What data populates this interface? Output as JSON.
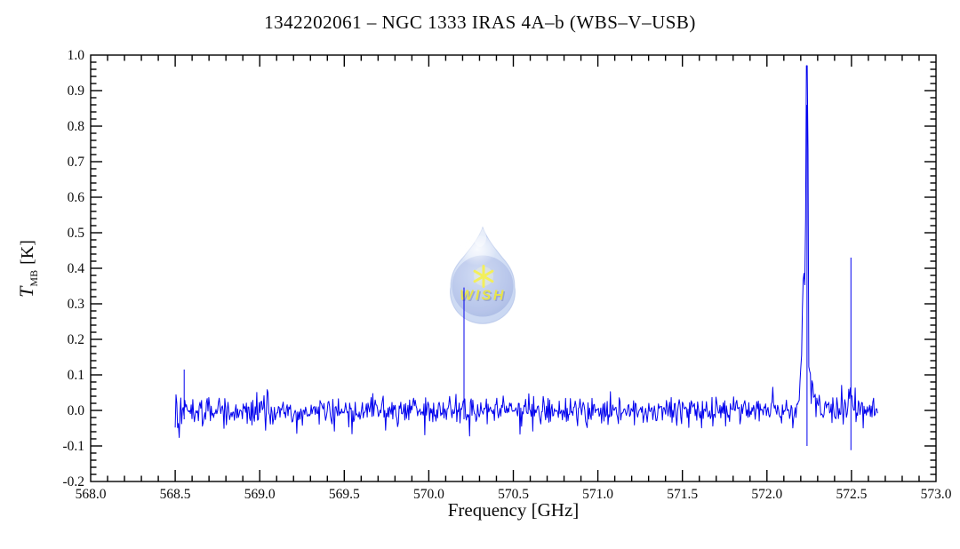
{
  "figure": {
    "background_color": "#ffffff",
    "title": "1342202061 – NGC 1333 IRAS 4A–b (WBS–V–USB)"
  },
  "chart_data": {
    "type": "line",
    "subtype": "spectrum",
    "title": "1342202061 – NGC 1333 IRAS 4A–b (WBS–V–USB)",
    "xlabel": "Frequency [GHz]",
    "ylabel": {
      "symbol": "T",
      "subscript": "MB",
      "unit": "[K]"
    },
    "xlim": [
      568.0,
      573.0
    ],
    "ylim": [
      -0.2,
      1.0
    ],
    "grid": false,
    "legend": "none",
    "x_major_ticks": [
      568.0,
      568.5,
      569.0,
      569.5,
      570.0,
      570.5,
      571.0,
      571.5,
      572.0,
      572.5,
      573.0
    ],
    "x_tick_labels": [
      "568.0",
      "568.5",
      "569.0",
      "569.5",
      "570.0",
      "570.5",
      "571.0",
      "571.5",
      "572.0",
      "572.5",
      "573.0"
    ],
    "x_minor_step": 0.1,
    "y_major_ticks": [
      1.0,
      0.9,
      0.8,
      0.7,
      0.6,
      0.5,
      0.4,
      0.3,
      0.2,
      0.1,
      0.0,
      -0.1,
      -0.2
    ],
    "y_tick_labels": [
      "1.0",
      "0.9",
      "0.8",
      "0.7",
      "0.6",
      "0.5",
      "0.4",
      "0.3",
      "0.2",
      "0.1",
      "0.0",
      "-0.1",
      "-0.2"
    ],
    "y_minor_step": 0.02,
    "line_color": "#0000ee",
    "axis_color": "#000000",
    "spectrum": {
      "coverage_ghz": [
        568.5,
        572.655
      ],
      "baseline_K": 0.0,
      "noise_sigma_K": 0.019,
      "start_noise": {
        "boost_until_ghz": 568.68,
        "factor": 1.9
      },
      "noise_seed": 20613,
      "features": [
        {
          "name": "startup-spike",
          "freq_ghz": 568.553,
          "peak_K": 0.115,
          "type": "narrow-spike"
        },
        {
          "name": "narrow-spike-1",
          "freq_ghz": 570.208,
          "peak_K": 0.346,
          "type": "narrow-spike"
        },
        {
          "name": "emission-line",
          "freq_ghz": 572.237,
          "peak_K": 0.87,
          "type": "emission-line",
          "shoulder": {
            "freq_ghz": 572.219,
            "amp_K": 0.3,
            "sigma_ghz": 0.01
          },
          "base_wing": {
            "amp_K": 0.1,
            "sigma_ghz": 0.032
          },
          "core_width_ghz": 0.008,
          "down_spike_K": -0.1
        },
        {
          "name": "narrow-spike-2",
          "freq_ghz": 572.497,
          "peak_K": 0.43,
          "type": "narrow-spike",
          "down_spike_K": -0.112
        }
      ]
    },
    "watermark": {
      "text": "WISH",
      "shape": "water-droplet",
      "center_freq_ghz": 570.32,
      "center_value_K": 0.39,
      "drop_fill": "#c3d2f0",
      "drop_edge": "#9fb2e2",
      "sphere_fill": "#96a9da",
      "star_color": "#f2ee4e",
      "text_color": "#e6e23c"
    }
  }
}
